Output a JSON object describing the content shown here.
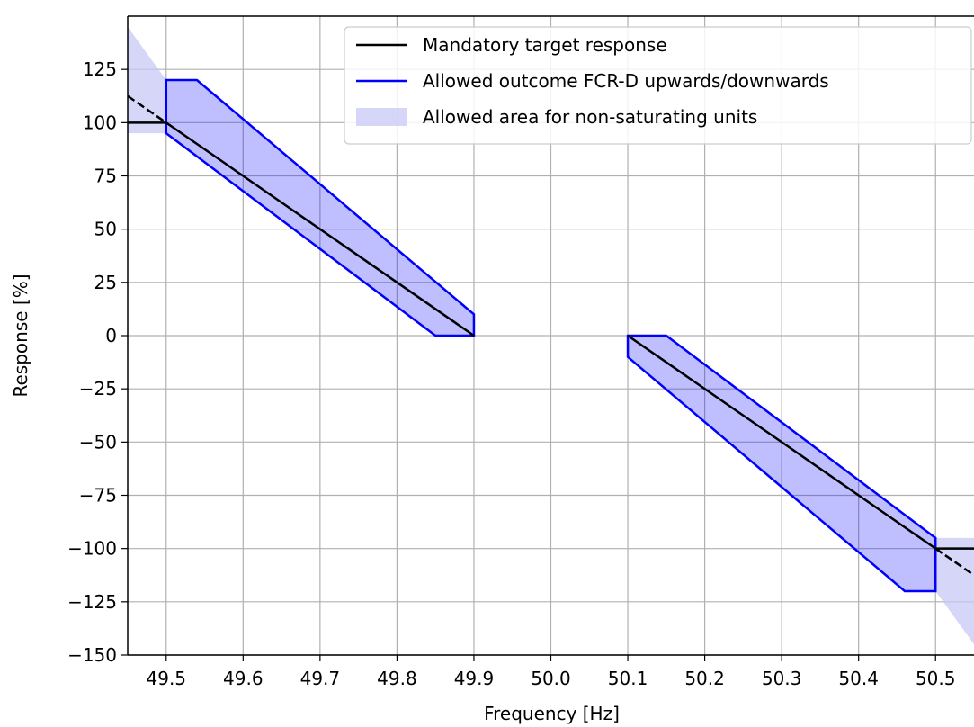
{
  "chart_data": {
    "type": "line",
    "xlabel": "Frequency [Hz]",
    "ylabel": "Response [%]",
    "xlim": [
      49.45,
      50.55
    ],
    "ylim": [
      -150,
      150
    ],
    "xticks": [
      49.5,
      49.6,
      49.7,
      49.8,
      49.9,
      50.0,
      50.1,
      50.2,
      50.3,
      50.4,
      50.5
    ],
    "xtick_labels": [
      "49.5",
      "49.6",
      "49.7",
      "49.8",
      "49.9",
      "50.0",
      "50.1",
      "50.2",
      "50.3",
      "50.4",
      "50.5"
    ],
    "yticks": [
      -150,
      -125,
      -100,
      -75,
      -50,
      -25,
      0,
      25,
      50,
      75,
      100,
      125
    ],
    "ytick_labels": [
      "−150",
      "−125",
      "−100",
      "−75",
      "−50",
      "−25",
      "0",
      "25",
      "50",
      "75",
      "100",
      "125"
    ],
    "grid": true,
    "legend": {
      "placement": "top-right",
      "entries": [
        {
          "label": "Mandatory target response",
          "style": "line",
          "color": "#000000"
        },
        {
          "label": "Allowed outcome FCR-D upwards/downwards",
          "style": "line",
          "color": "#0000ff"
        },
        {
          "label": "Allowed area for non-saturating units",
          "style": "patch",
          "color": "#c8c8f5"
        }
      ]
    },
    "series": [
      {
        "role": "target-up",
        "style": "solid",
        "color": "#000000",
        "x": [
          49.45,
          49.5,
          49.9
        ],
        "y": [
          100,
          100,
          0
        ]
      },
      {
        "role": "target-down",
        "style": "solid",
        "color": "#000000",
        "x": [
          50.1,
          50.5,
          50.55
        ],
        "y": [
          0,
          -100,
          -100
        ]
      },
      {
        "role": "target-extension-up",
        "style": "dashed",
        "color": "#000000",
        "x": [
          49.45,
          49.5
        ],
        "y": [
          112.5,
          100
        ]
      },
      {
        "role": "target-extension-down",
        "style": "dashed",
        "color": "#000000",
        "x": [
          50.5,
          50.55
        ],
        "y": [
          -100,
          -112.5
        ]
      },
      {
        "role": "allowed-outcome-up",
        "style": "filled-outline",
        "color": "#0000ff",
        "fill": "#0000ff",
        "fill_opacity": 0.25,
        "x": [
          49.5,
          49.5,
          49.54,
          49.9,
          49.9,
          49.85,
          49.5
        ],
        "y": [
          95,
          120,
          120,
          10,
          0,
          0,
          95
        ]
      },
      {
        "role": "allowed-outcome-down",
        "style": "filled-outline",
        "color": "#0000ff",
        "fill": "#0000ff",
        "fill_opacity": 0.25,
        "x": [
          50.1,
          50.15,
          50.5,
          50.5,
          50.46,
          50.1,
          50.1
        ],
        "y": [
          0,
          0,
          -95,
          -120,
          -120,
          -10,
          0
        ]
      },
      {
        "role": "non-saturating-band-up",
        "style": "band",
        "color": "#c8c8f5",
        "x": [
          49.45,
          49.5
        ],
        "y_upper": [
          145,
          120
        ],
        "y_lower": [
          95,
          95
        ]
      },
      {
        "role": "non-saturating-band-down",
        "style": "band",
        "color": "#c8c8f5",
        "x": [
          50.5,
          50.55
        ],
        "y_upper": [
          -95,
          -95
        ],
        "y_lower": [
          -120,
          -145
        ]
      }
    ]
  }
}
